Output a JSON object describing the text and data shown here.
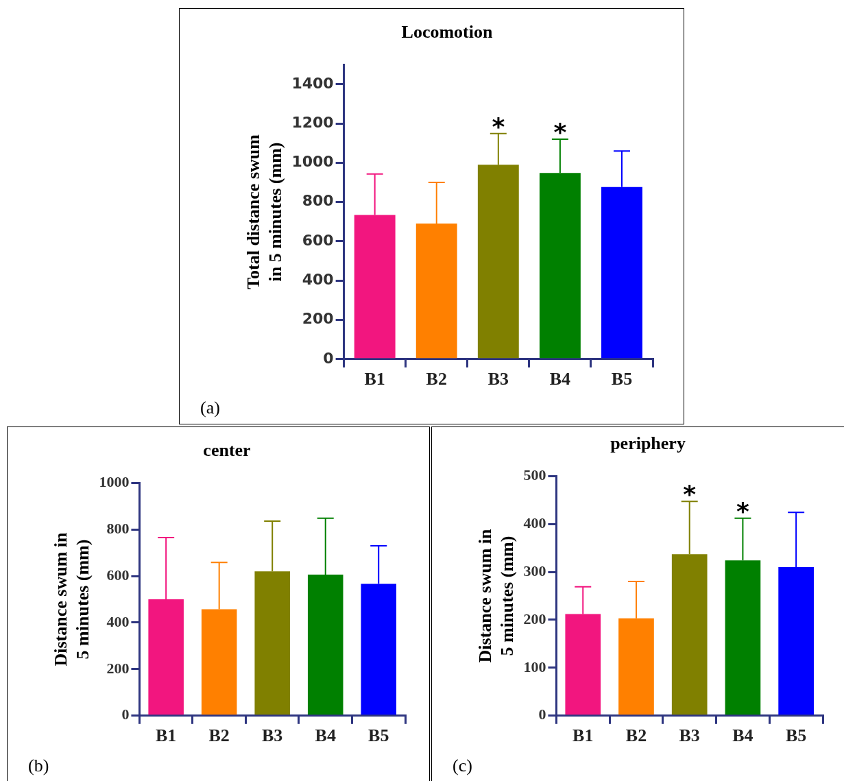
{
  "chart_data": [
    {
      "type": "bar",
      "title": "Locomotion",
      "ylabel": "Total distance swum\nin 5 minutes (mm)",
      "categories": [
        "B1",
        "B2",
        "B3",
        "B4",
        "B5"
      ],
      "values": [
        734,
        691,
        990,
        948,
        877
      ],
      "colors": [
        "#f2167f",
        "#ff8000",
        "#808000",
        "#008000",
        "#0000ff"
      ],
      "errors": [
        [
          734,
          943
        ],
        [
          691,
          900
        ],
        [
          990,
          1149
        ],
        [
          948,
          1120
        ],
        [
          877,
          1060
        ]
      ],
      "ylim": [
        0,
        1500
      ],
      "yticks": [
        0,
        200,
        400,
        600,
        800,
        1000,
        1200,
        1400
      ],
      "annotations": [
        {
          "text": "*",
          "x": "B3",
          "y": 1149
        },
        {
          "text": "*",
          "x": "B4",
          "y": 1120
        },
        "(a)"
      ]
    },
    {
      "type": "bar",
      "title": "center",
      "ylabel": "Distance swum in\n5 minutes (mm)",
      "categories": [
        "B1",
        "B2",
        "B3",
        "B4",
        "B5"
      ],
      "values": [
        500,
        457,
        620,
        606,
        566
      ],
      "colors": [
        "#f2167f",
        "#ff8000",
        "#808000",
        "#008000",
        "#0000ff"
      ],
      "errors": [
        [
          500,
          765
        ],
        [
          457,
          658
        ],
        [
          620,
          836
        ],
        [
          606,
          848
        ],
        [
          566,
          730
        ]
      ],
      "ylim": [
        0,
        1000
      ],
      "yticks": [
        0,
        200,
        400,
        600,
        800,
        1000
      ],
      "annotations": [
        "(b)"
      ]
    },
    {
      "type": "bar",
      "title": "periphery",
      "ylabel": "Distance swum in\n5 minutes (mm)",
      "categories": [
        "B1",
        "B2",
        "B3",
        "B4",
        "B5"
      ],
      "values": [
        212,
        203,
        337,
        324,
        310
      ],
      "colors": [
        "#f2167f",
        "#ff8000",
        "#808000",
        "#008000",
        "#0000ff"
      ],
      "errors": [
        [
          212,
          269
        ],
        [
          203,
          280
        ],
        [
          337,
          447
        ],
        [
          324,
          412
        ],
        [
          310,
          424
        ]
      ],
      "ylim": [
        0,
        500
      ],
      "yticks": [
        0,
        100,
        200,
        300,
        400,
        500
      ],
      "annotations": [
        {
          "text": "*",
          "x": "B3",
          "y": 447
        },
        {
          "text": "*",
          "x": "B4",
          "y": 412
        },
        "(c)"
      ]
    }
  ]
}
